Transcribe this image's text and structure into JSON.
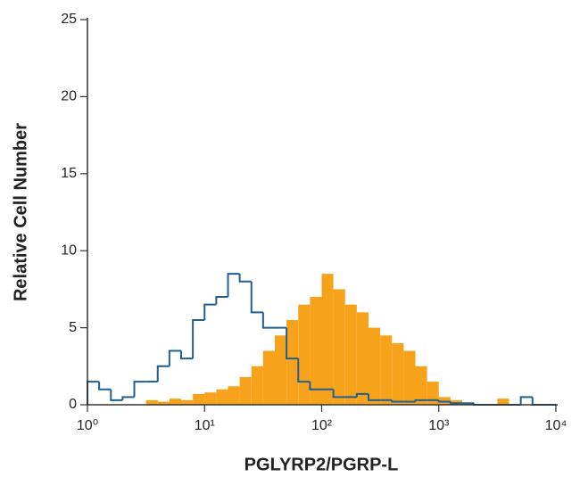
{
  "chart_data": {
    "type": "histogram",
    "x_label": "PGLYRP2/PGRP-L",
    "y_label": "Relative Cell Number",
    "xscale": "log",
    "xlim": [
      1,
      10000
    ],
    "ylim": [
      0,
      25
    ],
    "xticks": [
      {
        "value": 1,
        "label": "10⁰"
      },
      {
        "value": 10,
        "label": "10¹"
      },
      {
        "value": 100,
        "label": "10²"
      },
      {
        "value": 1000,
        "label": "10³"
      },
      {
        "value": 10000,
        "label": "10⁴"
      }
    ],
    "yticks": [
      0,
      5,
      10,
      15,
      20,
      25
    ],
    "bins": [
      1,
      1.259,
      1.585,
      1.995,
      2.512,
      3.162,
      3.981,
      5.012,
      6.31,
      7.943,
      10,
      12.59,
      15.85,
      19.95,
      25.12,
      31.62,
      39.81,
      50.12,
      63.1,
      79.43,
      100,
      125.9,
      158.5,
      199.5,
      251.2,
      316.2,
      398.1,
      501.2,
      631,
      794.3,
      1000,
      1259,
      1585,
      1995,
      2512,
      3162,
      3981,
      5012,
      6310,
      7943,
      10000
    ],
    "series": [
      {
        "color": "#f7a21b",
        "fill": true,
        "values": [
          0,
          0,
          0,
          0,
          0,
          0.3,
          0.2,
          0.4,
          0.3,
          0.7,
          0.8,
          1,
          1.2,
          1.8,
          2.5,
          3.5,
          4.5,
          5.5,
          6.5,
          7,
          8.5,
          7.5,
          6.5,
          6,
          5,
          4.5,
          4,
          3.5,
          2.5,
          1.5,
          0.5,
          0.3,
          0.1,
          0,
          0,
          0.4,
          0,
          0,
          0,
          0
        ]
      },
      {
        "color": "#1f5f94",
        "fill": false,
        "values": [
          1.5,
          1,
          0.3,
          0.5,
          1.5,
          1.5,
          2.5,
          3.5,
          3,
          5.5,
          6.5,
          7,
          8.5,
          8,
          6,
          5,
          5,
          3,
          1.5,
          1,
          1,
          0.5,
          0.5,
          0.7,
          0.3,
          0.3,
          0.2,
          0.2,
          0.3,
          0.3,
          0.2,
          0.1,
          0.1,
          0,
          0,
          0,
          0,
          0.5,
          0,
          0
        ]
      }
    ]
  }
}
